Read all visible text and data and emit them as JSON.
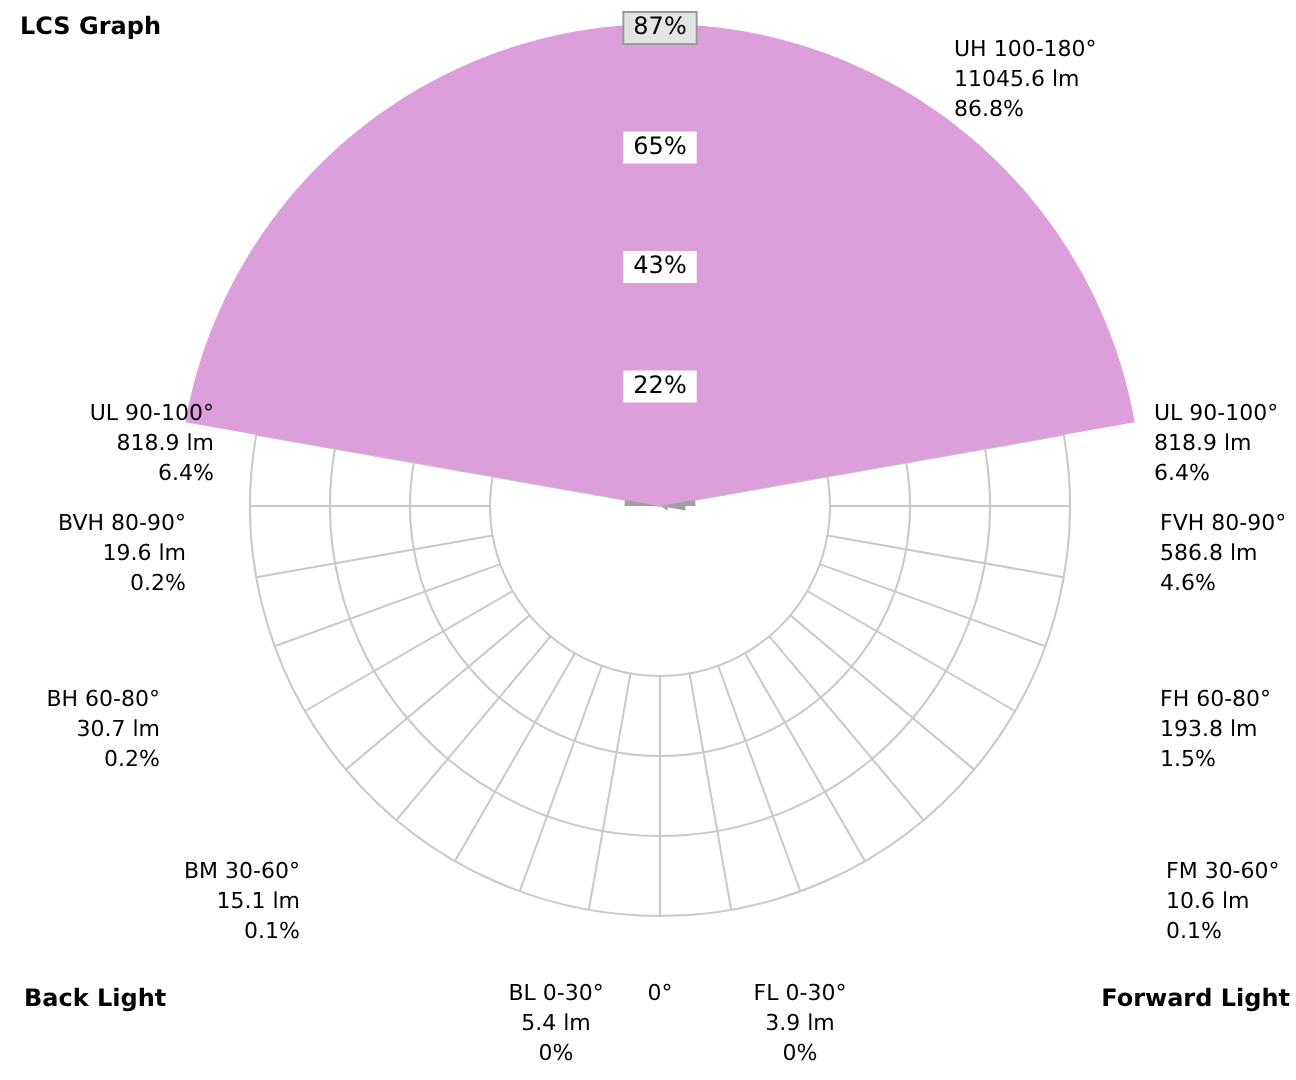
{
  "chart_data": {
    "type": "other",
    "title": "LCS Graph",
    "categories": [
      "UH 100-180°",
      "UL 90-100°",
      "UL 90-100°",
      "BVH 80-90°",
      "FVH 80-90°",
      "BH 60-80°",
      "FH 60-80°",
      "BM 30-60°",
      "FM 30-60°",
      "BL 0-30°",
      "FL 0-30°"
    ],
    "series": [
      {
        "color": "#dc9fdc",
        "values": [
          86.8,
          6.4,
          6.4,
          0.2,
          4.6,
          0.2,
          1.5,
          0.1,
          0.1,
          0,
          0
        ],
        "value_labels": [
          "86.8%",
          "6.4%",
          "6.4%",
          "0.2%",
          "4.6%",
          "0.2%",
          "1.5%",
          "0.1%",
          "0.1%",
          "0%",
          "0%"
        ]
      }
    ],
    "annotations": [
      "Back Light",
      "0°",
      "Forward Light",
      "22%",
      "43%",
      "65%",
      "87%",
      "11045.6 lm",
      "818.9 lm",
      "818.9 lm",
      "19.6 lm",
      "586.8 lm",
      "30.7 lm",
      "193.8 lm",
      "15.1 lm",
      "10.6 lm",
      "5.4 lm",
      "3.9 lm"
    ]
  }
}
